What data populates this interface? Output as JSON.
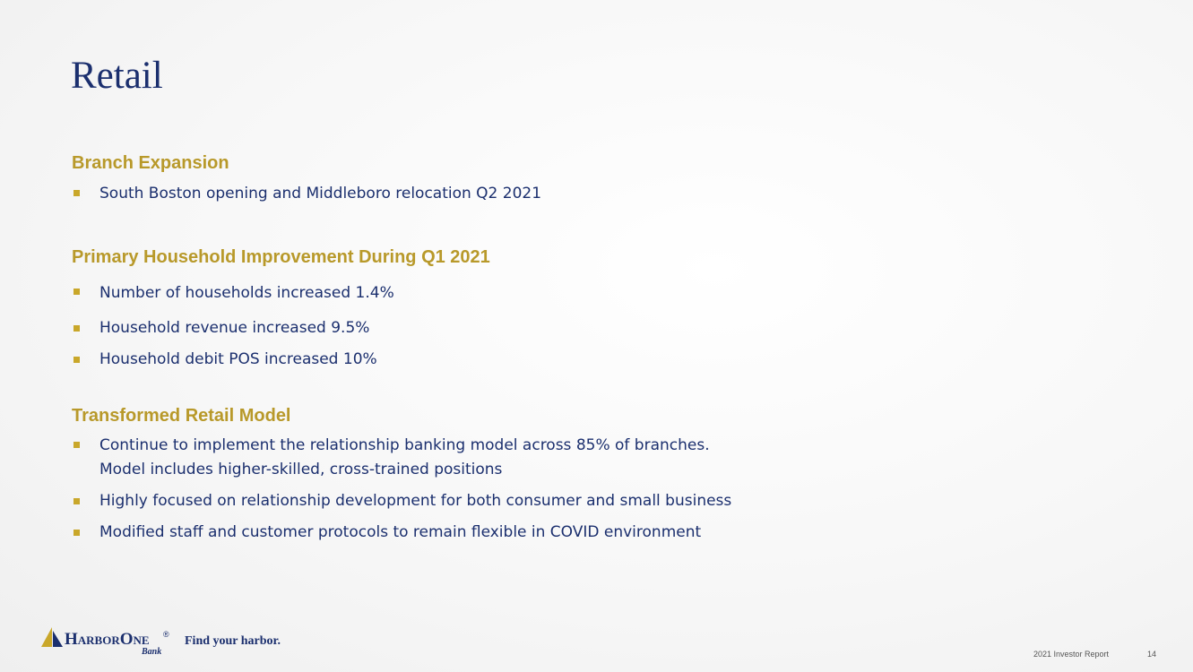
{
  "header": {
    "title": "Retail"
  },
  "sections": [
    {
      "heading": "Branch Expansion",
      "bullets": [
        "South Boston opening and Middleboro relocation Q2 2021"
      ]
    },
    {
      "heading": "Primary Household Improvement During Q1 2021",
      "bullets": [
        "Number of households increased 1.4%",
        "Household revenue increased 9.5%",
        "Household debit POS increased 10%"
      ]
    },
    {
      "heading": "Transformed Retail Model",
      "bullets": [
        "Continue to implement the relationship banking model across 85% of branches.\nModel includes higher-skilled, cross-trained positions",
        "Highly focused on relationship development for both consumer and small business",
        "Modified staff and customer protocols to remain flexible in COVID environment"
      ]
    }
  ],
  "footer": {
    "logo_name": "HarborOne",
    "logo_mark": "®",
    "logo_sub": "Bank",
    "tagline": "Find your harbor.",
    "report": "2021 Investor Report",
    "page": "14"
  }
}
